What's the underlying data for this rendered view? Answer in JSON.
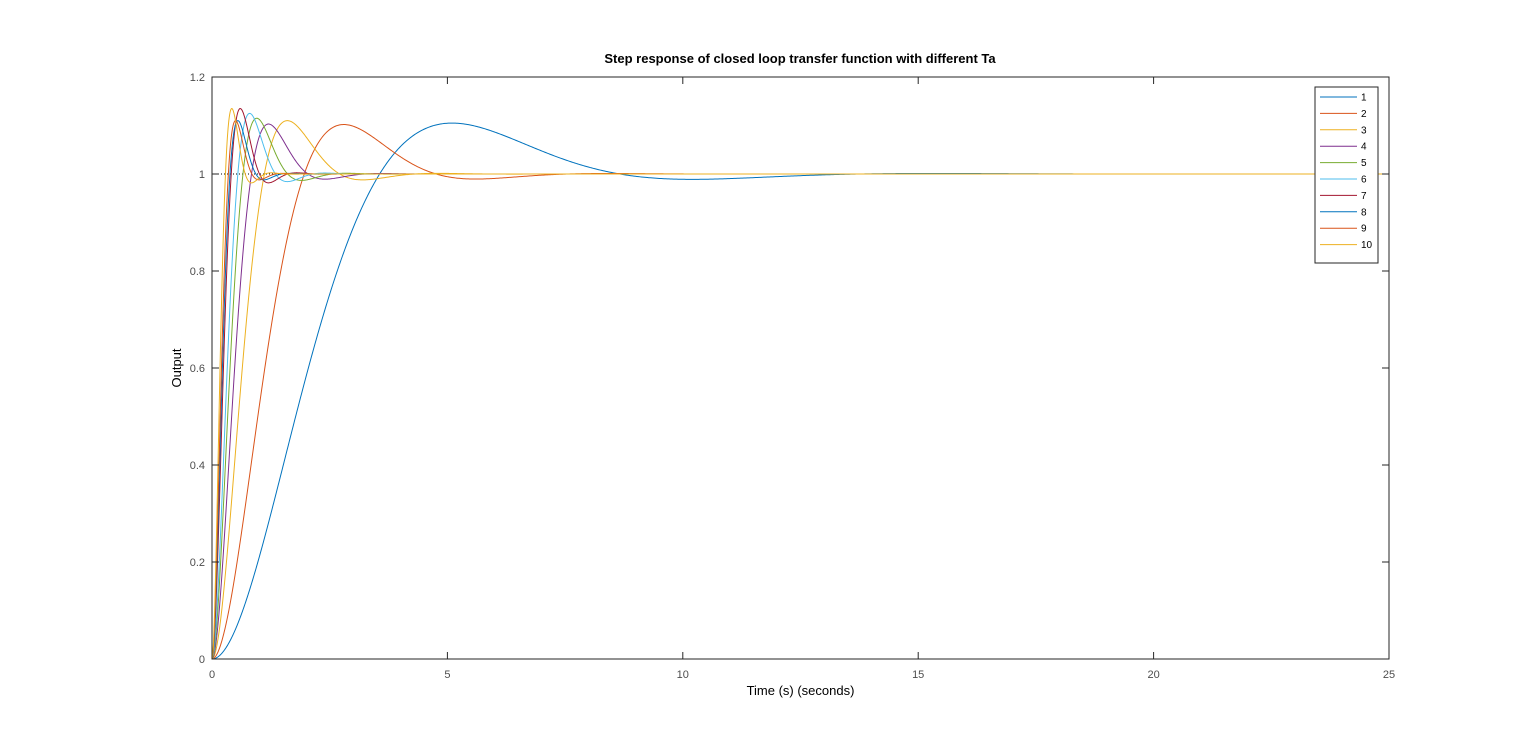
{
  "chart_data": {
    "type": "line",
    "title": "Step response of closed loop transfer function with different Ta",
    "xlabel": "Time (s) (seconds)",
    "ylabel": "Output",
    "xlim": [
      0,
      25
    ],
    "ylim": [
      0,
      1.2
    ],
    "xticks": [
      0,
      5,
      10,
      15,
      20,
      25
    ],
    "yticks": [
      0,
      0.2,
      0.4,
      0.6,
      0.8,
      1,
      1.2
    ],
    "xtick_labels": [
      "0",
      "5",
      "10",
      "15",
      "20",
      "25"
    ],
    "ytick_labels": [
      "0",
      "0.2",
      "0.4",
      "0.6",
      "0.8",
      "1",
      "1.2"
    ],
    "grid": false,
    "legend_position": "top-right",
    "reference_line": {
      "y": 1,
      "style": "dotted"
    },
    "colors": [
      "#0072BD",
      "#D95319",
      "#EDB120",
      "#7E2F8E",
      "#77AC30",
      "#4DBEEE",
      "#A2142F"
    ],
    "series": [
      {
        "name": "1",
        "peak_time": 5.1,
        "peak_value": 1.105,
        "approx_settle_time": 20
      },
      {
        "name": "2",
        "peak_time": 2.8,
        "peak_value": 1.102,
        "approx_settle_time": 10
      },
      {
        "name": "3",
        "peak_time": 1.6,
        "peak_value": 1.11,
        "approx_settle_time": 6
      },
      {
        "name": "4",
        "peak_time": 1.2,
        "peak_value": 1.103,
        "approx_settle_time": 5
      },
      {
        "name": "5",
        "peak_time": 0.95,
        "peak_value": 1.115,
        "approx_settle_time": 4
      },
      {
        "name": "6",
        "peak_time": 0.8,
        "peak_value": 1.125,
        "approx_settle_time": 3.2
      },
      {
        "name": "7",
        "peak_time": 0.6,
        "peak_value": 1.135,
        "approx_settle_time": 2.5
      },
      {
        "name": "8",
        "peak_time": 0.55,
        "peak_value": 1.11,
        "approx_settle_time": 2
      },
      {
        "name": "9",
        "peak_time": 0.5,
        "peak_value": 1.11,
        "approx_settle_time": 1.8
      },
      {
        "name": "10",
        "peak_time": 0.42,
        "peak_value": 1.135,
        "approx_settle_time": 1.5
      }
    ]
  }
}
